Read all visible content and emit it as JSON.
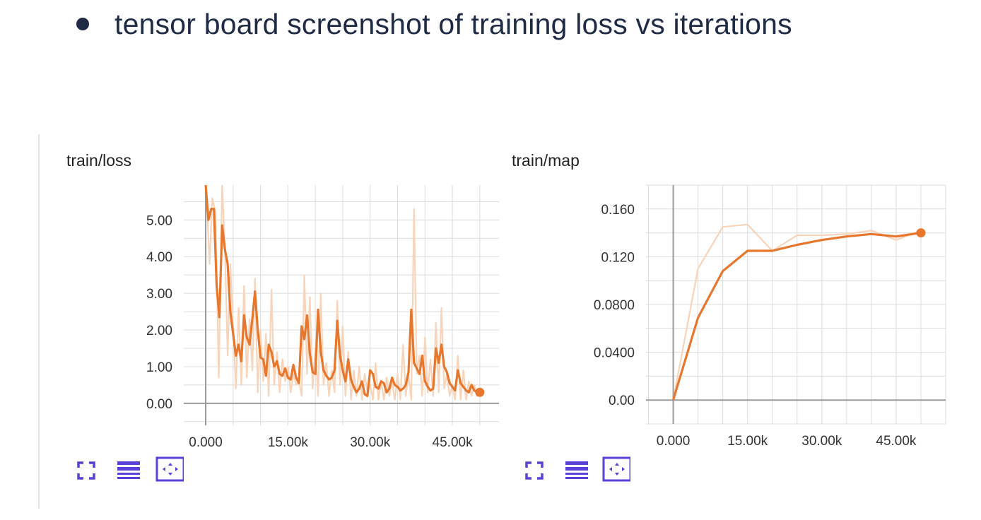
{
  "slide": {
    "bullet_text": "tensor board screenshot of training loss vs iterations"
  },
  "colors": {
    "smoothed_line": "#e8772e",
    "raw_line": "#f7d4ba",
    "grid": "#dcdcdc",
    "axis": "#9a9a9a",
    "button": "#5a3fd8",
    "text": "#1f2a44"
  },
  "panels": [
    {
      "title": "train/loss",
      "buttons": [
        "expand-icon",
        "list-icon",
        "fit-domain-icon"
      ]
    },
    {
      "title": "train/map",
      "buttons": [
        "expand-icon",
        "list-icon",
        "fit-domain-icon"
      ]
    }
  ],
  "chart_data": [
    {
      "type": "line",
      "title": "train/loss",
      "xlabel": "",
      "ylabel": "",
      "xlim": [
        -4000,
        53500
      ],
      "ylim": [
        -0.6,
        5.95
      ],
      "x_ticks": [
        0,
        15000,
        30000,
        45000
      ],
      "x_tick_labels": [
        "0.000",
        "15.00k",
        "30.00k",
        "45.00k"
      ],
      "y_ticks": [
        0,
        1,
        2,
        3,
        4,
        5
      ],
      "y_tick_labels": [
        "0.00",
        "1.00",
        "2.00",
        "3.00",
        "4.00",
        "5.00"
      ],
      "grid": true,
      "series": [
        {
          "role": "raw",
          "x": [
            0,
            700,
            1200,
            1800,
            2400,
            3000,
            3500,
            4000,
            4500,
            5000,
            5500,
            6000,
            6500,
            7000,
            7500,
            8000,
            8500,
            9000,
            9500,
            10000,
            10500,
            11000,
            11500,
            12000,
            12500,
            13000,
            13500,
            14000,
            14500,
            15000,
            15500,
            16000,
            16500,
            17000,
            17500,
            18000,
            18500,
            19000,
            19500,
            20000,
            20500,
            21000,
            21500,
            22000,
            22500,
            23000,
            23500,
            24000,
            24500,
            25000,
            25500,
            26000,
            26500,
            27000,
            27500,
            28000,
            28500,
            29000,
            29500,
            30000,
            30500,
            31000,
            31500,
            32000,
            32500,
            33000,
            33500,
            34000,
            34500,
            35000,
            35500,
            36000,
            36500,
            37000,
            37500,
            38000,
            38500,
            39000,
            39500,
            40000,
            40500,
            41000,
            41500,
            42000,
            42500,
            43000,
            43500,
            44000,
            44500,
            45000,
            45500,
            46000,
            46500,
            47000,
            47500,
            48000,
            48500,
            49000,
            49500,
            50000
          ],
          "values": [
            6.2,
            3.8,
            5.6,
            5.2,
            0.7,
            6.0,
            4.2,
            1.3,
            3.8,
            2.1,
            0.4,
            2.6,
            0.5,
            3.2,
            0.7,
            2.3,
            0.9,
            3.4,
            0.3,
            2.0,
            0.6,
            1.9,
            0.2,
            3.1,
            0.5,
            1.4,
            0.3,
            1.2,
            0.6,
            1.0,
            0.3,
            0.8,
            0.5,
            0.6,
            0.2,
            3.5,
            0.8,
            2.9,
            0.4,
            1.5,
            0.2,
            3.0,
            0.5,
            1.1,
            0.2,
            0.9,
            0.3,
            2.8,
            0.5,
            2.1,
            0.2,
            1.4,
            0.1,
            0.9,
            0.2,
            1.0,
            0.1,
            0.8,
            0.3,
            0.5,
            0.1,
            1.1,
            0.1,
            0.6,
            0.1,
            0.7,
            0.2,
            0.6,
            0.1,
            0.8,
            0.1,
            1.6,
            0.2,
            0.8,
            0.1,
            5.3,
            0.8,
            1.3,
            0.2,
            1.8,
            0.3,
            1.2,
            0.2,
            2.2,
            0.3,
            2.6,
            0.4,
            0.8,
            0.2,
            0.5,
            0.1,
            1.3,
            0.1,
            0.9,
            0.1,
            0.6,
            0.2,
            0.5,
            0.2,
            0.4
          ],
          "color": "#f7d4ba"
        },
        {
          "role": "smoothed",
          "x": [
            0,
            500,
            1000,
            1500,
            2000,
            2500,
            3000,
            3500,
            4000,
            4500,
            5000,
            5500,
            6000,
            6500,
            7000,
            7500,
            8000,
            8500,
            9000,
            9500,
            10000,
            10500,
            11000,
            11500,
            12000,
            12500,
            13000,
            13500,
            14000,
            14500,
            15000,
            15500,
            16000,
            16500,
            17000,
            17500,
            18000,
            18500,
            19000,
            19500,
            20000,
            20500,
            21000,
            21500,
            22000,
            22500,
            23000,
            23500,
            24000,
            24500,
            25000,
            25500,
            26000,
            26500,
            27000,
            27500,
            28000,
            28500,
            29000,
            29500,
            30000,
            30500,
            31000,
            31500,
            32000,
            32500,
            33000,
            33500,
            34000,
            34500,
            35000,
            35500,
            36000,
            36500,
            37000,
            37500,
            38000,
            38500,
            39000,
            39500,
            40000,
            40500,
            41000,
            41500,
            42000,
            42500,
            43000,
            43500,
            44000,
            44500,
            45000,
            45500,
            46000,
            46500,
            47000,
            47500,
            48000,
            48500,
            49000,
            49500,
            50000
          ],
          "values": [
            5.95,
            5.0,
            5.3,
            5.3,
            3.2,
            2.35,
            4.85,
            4.2,
            3.8,
            2.5,
            1.9,
            1.3,
            1.6,
            1.15,
            2.4,
            1.8,
            1.6,
            2.3,
            3.05,
            2.0,
            1.25,
            1.2,
            0.75,
            1.6,
            1.4,
            1.0,
            1.15,
            0.8,
            0.75,
            0.95,
            0.7,
            0.65,
            1.05,
            0.7,
            0.55,
            2.1,
            1.75,
            2.4,
            1.35,
            0.85,
            0.8,
            2.55,
            1.4,
            0.9,
            0.75,
            0.65,
            0.7,
            0.9,
            2.25,
            1.3,
            0.9,
            0.6,
            1.2,
            0.65,
            0.45,
            0.3,
            0.4,
            0.6,
            0.25,
            0.2,
            0.9,
            0.8,
            0.45,
            0.4,
            0.6,
            0.55,
            0.3,
            0.4,
            0.7,
            0.5,
            0.45,
            0.35,
            0.4,
            0.5,
            0.85,
            2.55,
            1.1,
            0.95,
            0.8,
            1.3,
            0.6,
            0.45,
            0.35,
            0.4,
            1.5,
            1.1,
            1.6,
            1.0,
            0.85,
            0.55,
            0.45,
            0.35,
            0.9,
            0.55,
            0.45,
            0.35,
            0.3,
            0.5,
            0.35,
            0.3,
            0.3
          ],
          "color": "#e8772e"
        }
      ]
    },
    {
      "type": "line",
      "title": "train/map",
      "xlabel": "",
      "ylabel": "",
      "xlim": [
        -5500,
        55000
      ],
      "ylim": [
        -0.02,
        0.18
      ],
      "x_ticks": [
        0,
        15000,
        30000,
        45000
      ],
      "x_tick_labels": [
        "0.000",
        "15.00k",
        "30.00k",
        "45.00k"
      ],
      "y_ticks": [
        0,
        0.04,
        0.08,
        0.12,
        0.16
      ],
      "y_tick_labels": [
        "0.00",
        "0.0400",
        "0.0800",
        "0.120",
        "0.160"
      ],
      "grid": true,
      "series": [
        {
          "role": "raw",
          "x": [
            0,
            5000,
            10000,
            15000,
            20000,
            25000,
            30000,
            35000,
            40000,
            45000,
            50000
          ],
          "values": [
            0.0,
            0.11,
            0.145,
            0.147,
            0.125,
            0.138,
            0.138,
            0.139,
            0.142,
            0.134,
            0.142
          ],
          "color": "#f7d4ba"
        },
        {
          "role": "smoothed",
          "x": [
            0,
            5000,
            10000,
            15000,
            20000,
            25000,
            30000,
            35000,
            40000,
            45000,
            50000
          ],
          "values": [
            0.0,
            0.069,
            0.108,
            0.125,
            0.125,
            0.13,
            0.134,
            0.137,
            0.139,
            0.137,
            0.14
          ],
          "color": "#e8772e"
        }
      ]
    }
  ]
}
